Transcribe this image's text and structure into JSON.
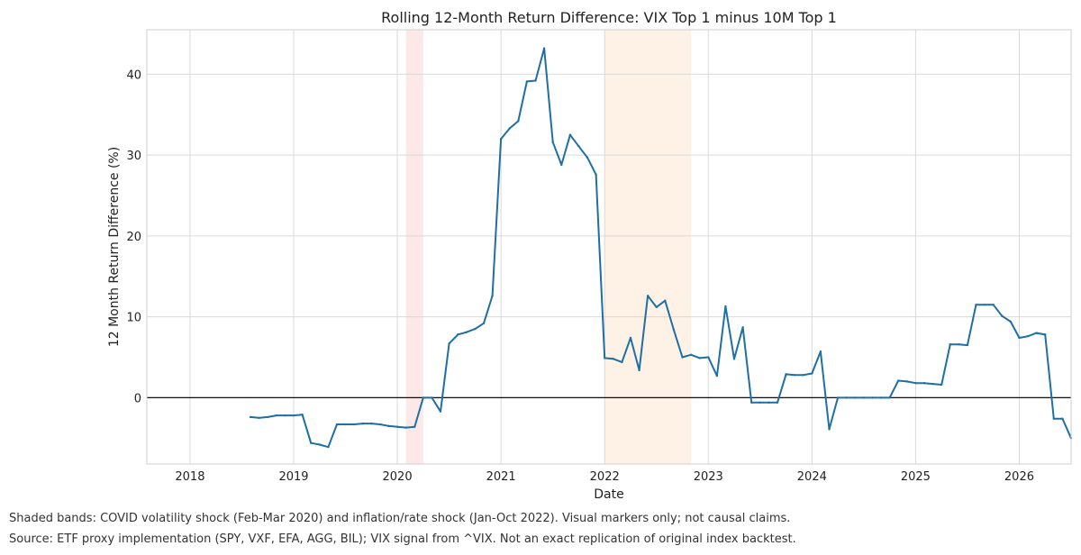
{
  "chart_data": {
    "type": "line",
    "title": "Rolling 12-Month Return Difference: VIX Top 1 minus 10M Top 1",
    "xlabel": "Date",
    "ylabel": "12 Month Return Difference (%)",
    "xlim": [
      "2017-08",
      "2026-07"
    ],
    "ylim": [
      -8.2,
      45.5
    ],
    "x_ticks": [
      "2018",
      "2019",
      "2020",
      "2021",
      "2022",
      "2023",
      "2024",
      "2025",
      "2026"
    ],
    "y_ticks": [
      0,
      10,
      20,
      30,
      40
    ],
    "grid": true,
    "zero_line": 0,
    "shaded_bands": [
      {
        "start": "2020-02",
        "end": "2020-03",
        "color": "#fde8e8"
      },
      {
        "start": "2022-01",
        "end": "2022-10",
        "color": "#fef1e6"
      }
    ],
    "line_color": "#1f6fa3",
    "series": [
      {
        "x": [
          "2018-08",
          "2018-09",
          "2018-10",
          "2018-11",
          "2018-12",
          "2019-01",
          "2019-02",
          "2019-03",
          "2019-04",
          "2019-05",
          "2019-06",
          "2019-07",
          "2019-08",
          "2019-09",
          "2019-10",
          "2019-11",
          "2019-12",
          "2020-01",
          "2020-02",
          "2020-03",
          "2020-04",
          "2020-05",
          "2020-06",
          "2020-07",
          "2020-08",
          "2020-09",
          "2020-10",
          "2020-11",
          "2020-12",
          "2021-01",
          "2021-02",
          "2021-03",
          "2021-04",
          "2021-05",
          "2021-06",
          "2021-07",
          "2021-08",
          "2021-09",
          "2021-10",
          "2021-11",
          "2021-12",
          "2022-01",
          "2022-02",
          "2022-03",
          "2022-04",
          "2022-05",
          "2022-06",
          "2022-07",
          "2022-08",
          "2022-09",
          "2022-10",
          "2022-11",
          "2022-12",
          "2023-01",
          "2023-02",
          "2023-03",
          "2023-04",
          "2023-05",
          "2023-06",
          "2023-07",
          "2023-08",
          "2023-09",
          "2023-10",
          "2023-11",
          "2023-12",
          "2024-01",
          "2024-02",
          "2024-03",
          "2024-04",
          "2024-05",
          "2024-06",
          "2024-07",
          "2024-08",
          "2024-09",
          "2024-10",
          "2024-11",
          "2024-12",
          "2025-01",
          "2025-02",
          "2025-03",
          "2025-04",
          "2025-05",
          "2025-06",
          "2025-07",
          "2025-08",
          "2025-09",
          "2025-10",
          "2025-11",
          "2025-12",
          "2026-01",
          "2026-02",
          "2026-03",
          "2026-04",
          "2026-05",
          "2026-06",
          "2026-07"
        ],
        "values": [
          -2.4,
          -2.5,
          -2.4,
          -2.2,
          -2.2,
          -2.2,
          -2.1,
          -5.6,
          -5.8,
          -6.1,
          -3.3,
          -3.3,
          -3.3,
          -3.2,
          -3.2,
          -3.3,
          -3.5,
          -3.6,
          -3.7,
          -3.6,
          0.0,
          0.0,
          -1.7,
          6.7,
          7.8,
          8.1,
          8.5,
          9.2,
          12.6,
          32.0,
          33.3,
          34.2,
          39.1,
          39.2,
          43.2,
          31.6,
          28.8,
          32.5,
          31.1,
          29.7,
          27.6,
          4.9,
          4.8,
          4.4,
          7.4,
          3.4,
          12.6,
          11.2,
          12.0,
          8.4,
          5.0,
          5.3,
          4.9,
          5.0,
          2.7,
          11.3,
          4.8,
          8.7,
          -0.6,
          -0.6,
          -0.6,
          -0.6,
          2.9,
          2.8,
          2.8,
          3.0,
          5.7,
          -3.9,
          0.0,
          0.0,
          0.0,
          0.0,
          0.0,
          0.0,
          0.0,
          2.1,
          2.0,
          1.8,
          1.8,
          1.7,
          1.6,
          6.6,
          6.6,
          6.5,
          11.5,
          11.5,
          11.5,
          10.1,
          9.4,
          7.4,
          7.6,
          8.0,
          7.8,
          -2.6,
          -2.6,
          -5.0
        ]
      }
    ]
  },
  "captions": [
    "Shaded bands: COVID volatility shock (Feb-Mar 2020) and inflation/rate shock (Jan-Oct 2022). Visual markers only; not causal claims.",
    "Source: ETF proxy implementation (SPY, VXF, EFA, AGG, BIL); VIX signal from ^VIX. Not an exact replication of original index backtest."
  ]
}
